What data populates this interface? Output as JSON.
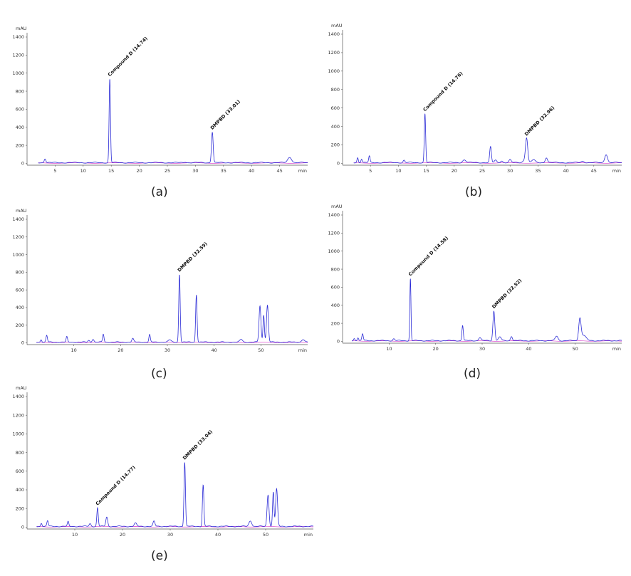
{
  "colors": {
    "trace": "#2b2bd6",
    "baseline": "#d633c8",
    "axis": "#555555"
  },
  "chart_data": [
    {
      "type": "line",
      "caption": "(a)",
      "ylabel": "mAU",
      "xunit": "min",
      "xlim": [
        0,
        50
      ],
      "ylim": [
        -20,
        1400
      ],
      "x_ticks": [
        5,
        10,
        15,
        20,
        25,
        30,
        35,
        40,
        45
      ],
      "y_ticks": [
        0,
        200,
        400,
        600,
        800,
        1000,
        1200,
        1400
      ],
      "peaks": [
        [
          3.2,
          45,
          0.15
        ],
        [
          14.74,
          930,
          0.12
        ],
        [
          28.2,
          8,
          0.2
        ],
        [
          33.01,
          340,
          0.15
        ],
        [
          46.8,
          60,
          0.35
        ]
      ],
      "annotations": [
        {
          "x": 14.74,
          "y": 930,
          "label": "Compound D (14.74)"
        },
        {
          "x": 33.01,
          "y": 340,
          "label": "DMPBD (33.01)"
        }
      ]
    },
    {
      "type": "line",
      "caption": "(b)",
      "ylabel": "mAU",
      "xunit": "min",
      "xlim": [
        0,
        50
      ],
      "ylim": [
        -20,
        1400
      ],
      "x_ticks": [
        5,
        10,
        15,
        20,
        25,
        30,
        35,
        40,
        45
      ],
      "y_ticks": [
        0,
        200,
        400,
        600,
        800,
        1000,
        1200,
        1400
      ],
      "peaks": [
        [
          2.7,
          55,
          0.12
        ],
        [
          3.4,
          40,
          0.12
        ],
        [
          4.8,
          70,
          0.12
        ],
        [
          11.0,
          25,
          0.15
        ],
        [
          14.76,
          530,
          0.12
        ],
        [
          21.8,
          30,
          0.3
        ],
        [
          26.5,
          170,
          0.15
        ],
        [
          27.4,
          25,
          0.2
        ],
        [
          28.5,
          20,
          0.2
        ],
        [
          30.0,
          30,
          0.2
        ],
        [
          32.5,
          20,
          0.3
        ],
        [
          32.96,
          265,
          0.2
        ],
        [
          34.2,
          30,
          0.3
        ],
        [
          36.5,
          55,
          0.2
        ],
        [
          43.0,
          15,
          0.3
        ],
        [
          47.2,
          90,
          0.25
        ]
      ],
      "annotations": [
        {
          "x": 14.76,
          "y": 530,
          "label": "Compound D (14.76)"
        },
        {
          "x": 32.96,
          "y": 265,
          "label": "DMPBD (32.96)"
        }
      ]
    },
    {
      "type": "line",
      "caption": "(c)",
      "ylabel": "mAU",
      "xunit": "min",
      "xlim": [
        0,
        60
      ],
      "ylim": [
        -20,
        1400
      ],
      "x_ticks": [
        10,
        20,
        30,
        40,
        50
      ],
      "y_ticks": [
        0,
        200,
        400,
        600,
        800,
        1000,
        1200,
        1400
      ],
      "peaks": [
        [
          3.0,
          30,
          0.15
        ],
        [
          4.2,
          75,
          0.15
        ],
        [
          8.5,
          60,
          0.15
        ],
        [
          13.2,
          20,
          0.2
        ],
        [
          14.1,
          35,
          0.2
        ],
        [
          16.3,
          90,
          0.15
        ],
        [
          22.6,
          40,
          0.2
        ],
        [
          26.2,
          85,
          0.15
        ],
        [
          30.5,
          25,
          0.3
        ],
        [
          32.59,
          770,
          0.15
        ],
        [
          36.2,
          540,
          0.15
        ],
        [
          45.8,
          30,
          0.3
        ],
        [
          49.8,
          410,
          0.2
        ],
        [
          50.6,
          310,
          0.15
        ],
        [
          51.4,
          420,
          0.2
        ],
        [
          59.0,
          30,
          0.3
        ]
      ],
      "annotations": [
        {
          "x": 32.59,
          "y": 770,
          "label": "DMPBD (32.59)"
        }
      ]
    },
    {
      "type": "line",
      "caption": "(d)",
      "ylabel": "mAU",
      "xunit": "min",
      "xlim": [
        0,
        60
      ],
      "ylim": [
        -20,
        1400
      ],
      "x_ticks": [
        10,
        20,
        30,
        40,
        50
      ],
      "y_ticks": [
        0,
        200,
        400,
        600,
        800,
        1000,
        1200,
        1400
      ],
      "peaks": [
        [
          2.5,
          25,
          0.15
        ],
        [
          3.3,
          35,
          0.15
        ],
        [
          4.3,
          75,
          0.15
        ],
        [
          11.0,
          20,
          0.2
        ],
        [
          14.58,
          690,
          0.12
        ],
        [
          25.8,
          170,
          0.15
        ],
        [
          29.5,
          35,
          0.25
        ],
        [
          32.52,
          330,
          0.2
        ],
        [
          33.8,
          40,
          0.3
        ],
        [
          36.3,
          50,
          0.2
        ],
        [
          46.0,
          50,
          0.3
        ],
        [
          51.0,
          240,
          0.25
        ],
        [
          51.8,
          60,
          0.5
        ]
      ],
      "annotations": [
        {
          "x": 14.58,
          "y": 690,
          "label": "Compound D (14.58)"
        },
        {
          "x": 32.52,
          "y": 330,
          "label": "DMPBD (32.52)"
        }
      ]
    },
    {
      "type": "line",
      "caption": "(e)",
      "ylabel": "mAU",
      "xunit": "min",
      "xlim": [
        0,
        60
      ],
      "ylim": [
        -20,
        1400
      ],
      "x_ticks": [
        10,
        20,
        30,
        40,
        50
      ],
      "y_ticks": [
        0,
        200,
        400,
        600,
        800,
        1000,
        1200,
        1400
      ],
      "peaks": [
        [
          3.0,
          35,
          0.15
        ],
        [
          4.3,
          60,
          0.15
        ],
        [
          8.6,
          50,
          0.15
        ],
        [
          13.2,
          30,
          0.2
        ],
        [
          14.77,
          200,
          0.15
        ],
        [
          16.7,
          100,
          0.2
        ],
        [
          22.7,
          35,
          0.25
        ],
        [
          26.6,
          55,
          0.2
        ],
        [
          33.04,
          690,
          0.15
        ],
        [
          36.9,
          445,
          0.15
        ],
        [
          46.8,
          60,
          0.3
        ],
        [
          50.5,
          340,
          0.2
        ],
        [
          51.6,
          370,
          0.15
        ],
        [
          52.3,
          400,
          0.2
        ]
      ],
      "annotations": [
        {
          "x": 14.77,
          "y": 200,
          "label": "Compound D (14.77)"
        },
        {
          "x": 33.04,
          "y": 690,
          "label": "DMPBD (33.04)"
        }
      ]
    }
  ]
}
